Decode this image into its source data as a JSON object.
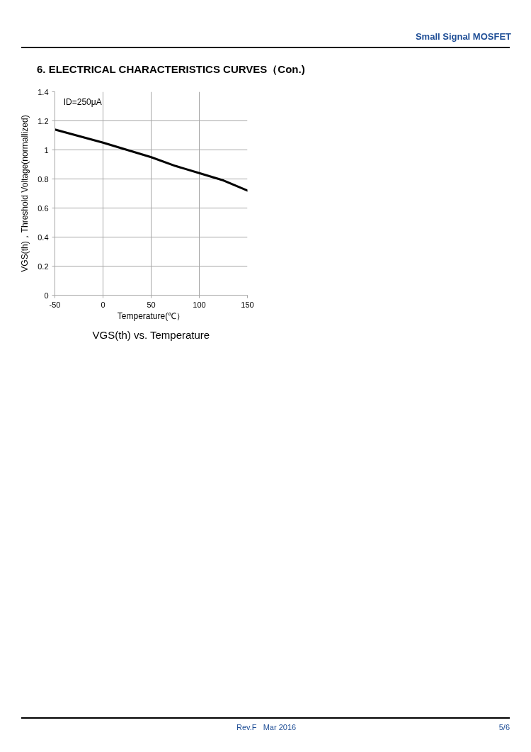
{
  "chart_data": {
    "type": "line",
    "title": "VGS(th) vs. Temperature",
    "xlabel": "Temperature(℃）",
    "ylabel": "VGS(th)，Threshold Voltage(normallized)",
    "x": [
      -50,
      0,
      25,
      50,
      75,
      100,
      125,
      150
    ],
    "series": [
      {
        "color": "#000000",
        "values": [
          1.14,
          1.05,
          1.0,
          0.95,
          0.89,
          0.84,
          0.79,
          0.72
        ]
      }
    ],
    "xlim": [
      -50,
      150
    ],
    "ylim": [
      0,
      1.4
    ],
    "xticks": [
      -50,
      0,
      50,
      100,
      150
    ],
    "yticks": [
      0,
      0.2,
      0.4,
      0.6,
      0.8,
      1,
      1.2,
      1.4
    ],
    "grid": true,
    "line_style": "solid",
    "annotations": [
      "Small Signal MOSFET",
      "6. ELECTRICAL CHARACTERISTICS CURVES（Con.)",
      "ID=250μA",
      "Rev.F   Mar 2016",
      "5/6"
    ]
  }
}
